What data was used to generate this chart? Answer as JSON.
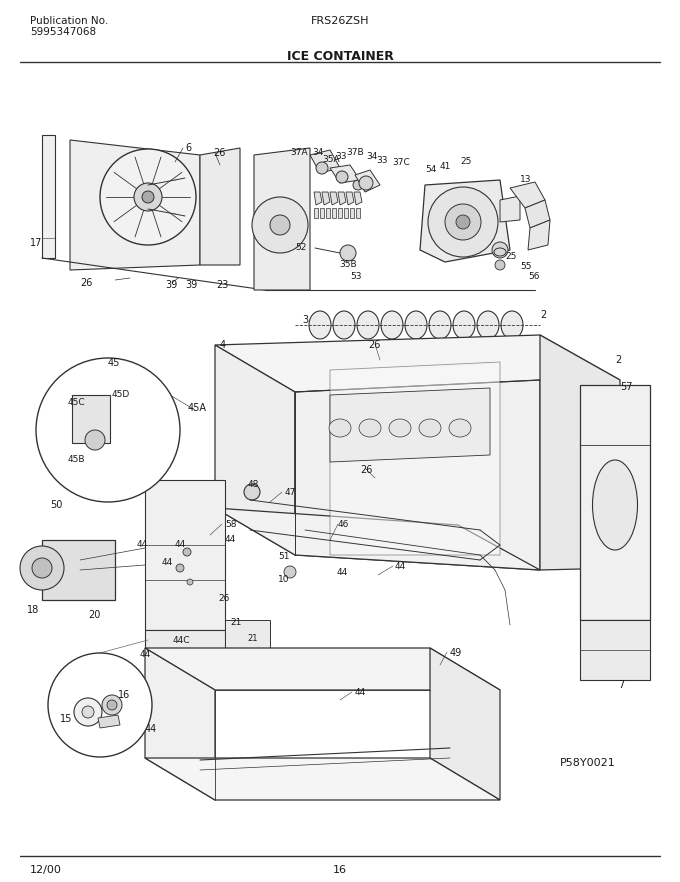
{
  "pub_no_label": "Publication No.",
  "pub_no_value": "5995347068",
  "model": "FRS26ZSH",
  "section": "ICE CONTAINER",
  "diagram_id": "P58Y0021",
  "date": "12/00",
  "page": "16",
  "bg_color": "#ffffff",
  "text_color": "#1a1a1a",
  "line_color": "#333333",
  "fig_width": 6.8,
  "fig_height": 8.82,
  "dpi": 100
}
